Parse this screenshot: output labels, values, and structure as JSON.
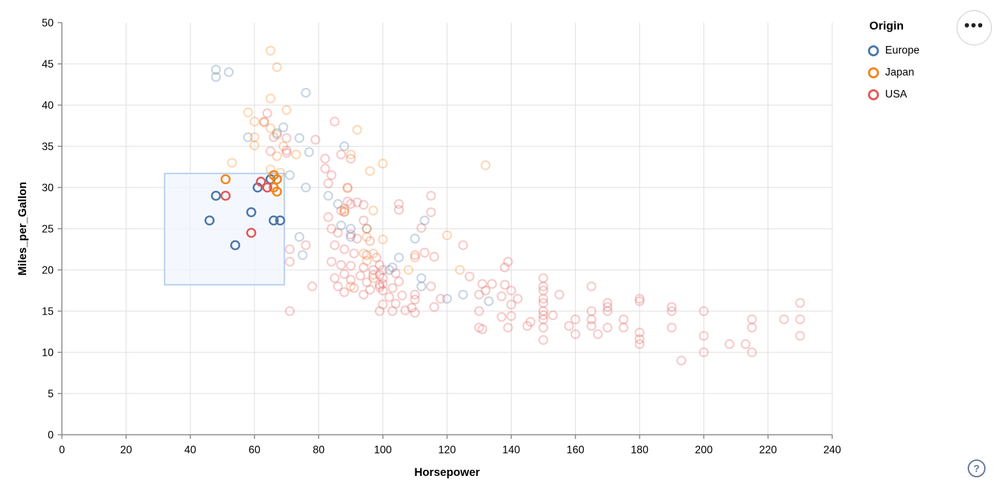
{
  "legend": {
    "title": "Origin",
    "items": [
      {
        "label": "Europe",
        "color": "#4c78a8"
      },
      {
        "label": "Japan",
        "color": "#f58518"
      },
      {
        "label": "USA",
        "color": "#e45756"
      }
    ]
  },
  "menu_button": {
    "glyph": "•••"
  },
  "help_button": {
    "glyph": "?"
  },
  "chart_data": {
    "type": "scatter",
    "title": "",
    "xlabel": "Horsepower",
    "ylabel": "Miles_per_Gallon",
    "xlim": [
      0,
      240
    ],
    "ylim": [
      0,
      50
    ],
    "x_ticks": [
      0,
      20,
      40,
      60,
      80,
      100,
      120,
      140,
      160,
      180,
      200,
      220,
      240
    ],
    "y_ticks": [
      0,
      5,
      10,
      15,
      20,
      25,
      30,
      35,
      40,
      45,
      50
    ],
    "grid": true,
    "legend_position": "top-right",
    "colors": {
      "grid": "#dddddd",
      "axis": "#888888",
      "label": "#000000",
      "brush_fill": "#f0f5fd",
      "brush_stroke": "#b5cdf2"
    },
    "brush": {
      "x": [
        32.0,
        69.3
      ],
      "y": [
        18.2,
        31.7
      ]
    },
    "series": [
      {
        "name": "Europe",
        "color": "#4c78a8",
        "selected": [
          [
            48,
            29
          ],
          [
            46,
            26
          ],
          [
            54,
            23
          ],
          [
            59,
            27
          ],
          [
            61,
            30
          ],
          [
            65,
            31
          ],
          [
            66,
            26
          ],
          [
            68,
            26
          ]
        ],
        "points": [
          [
            48,
            44.3
          ],
          [
            48,
            43.4
          ],
          [
            52,
            44
          ],
          [
            76,
            41.5
          ],
          [
            69,
            37.3
          ],
          [
            67,
            36.6
          ],
          [
            58,
            36.1
          ],
          [
            74,
            36
          ],
          [
            88,
            35
          ],
          [
            77,
            34.3
          ],
          [
            71,
            31.5
          ],
          [
            76,
            30
          ],
          [
            83,
            29
          ],
          [
            86,
            28
          ],
          [
            113,
            26
          ],
          [
            95,
            25
          ],
          [
            90,
            25
          ],
          [
            87,
            25.4
          ],
          [
            90,
            24
          ],
          [
            74,
            24
          ],
          [
            110,
            23.8
          ],
          [
            75,
            21.8
          ],
          [
            105,
            21.5
          ],
          [
            103,
            20.3
          ],
          [
            102,
            20
          ],
          [
            112,
            19
          ],
          [
            112,
            18
          ],
          [
            125,
            17
          ],
          [
            120,
            16.5
          ],
          [
            133,
            16.2
          ]
        ]
      },
      {
        "name": "Japan",
        "color": "#f58518",
        "selected": [
          [
            51,
            31
          ],
          [
            66,
            31.5
          ],
          [
            67,
            31
          ],
          [
            66,
            30
          ],
          [
            67,
            29.5
          ]
        ],
        "points": [
          [
            65,
            46.6
          ],
          [
            67,
            44.6
          ],
          [
            65,
            40.8
          ],
          [
            70,
            39.4
          ],
          [
            58,
            39.1
          ],
          [
            60,
            38
          ],
          [
            63,
            37.9
          ],
          [
            92,
            37
          ],
          [
            65,
            37.2
          ],
          [
            67,
            36.4
          ],
          [
            60,
            36.1
          ],
          [
            60,
            35.1
          ],
          [
            69,
            35
          ],
          [
            67,
            33.8
          ],
          [
            53,
            33
          ],
          [
            65,
            32.2
          ],
          [
            68,
            31.8
          ],
          [
            96,
            32
          ],
          [
            100,
            32.9
          ],
          [
            132,
            32.7
          ],
          [
            73,
            34
          ],
          [
            90,
            34
          ],
          [
            89,
            29.9
          ],
          [
            88,
            27
          ],
          [
            88,
            27.4
          ],
          [
            97,
            27.2
          ],
          [
            95,
            25
          ],
          [
            95,
            24
          ],
          [
            94,
            22
          ],
          [
            97,
            22
          ],
          [
            110,
            21.5
          ],
          [
            100,
            23.7
          ],
          [
            120,
            24.2
          ],
          [
            124,
            20
          ],
          [
            108,
            20
          ],
          [
            97,
            19
          ],
          [
            90,
            18
          ],
          [
            95,
            21.1
          ]
        ]
      },
      {
        "name": "USA",
        "color": "#e45756",
        "selected": [
          [
            51,
            29
          ],
          [
            62,
            30.7
          ],
          [
            64,
            30
          ],
          [
            59,
            24.5
          ]
        ],
        "points": [
          [
            64,
            39
          ],
          [
            63,
            38
          ],
          [
            66,
            36.1
          ],
          [
            70,
            36
          ],
          [
            65,
            34.4
          ],
          [
            70,
            34.5
          ],
          [
            70,
            34.2
          ],
          [
            85,
            38
          ],
          [
            79,
            35.8
          ],
          [
            71,
            15
          ],
          [
            76,
            23
          ],
          [
            71,
            22.5
          ],
          [
            71,
            21
          ],
          [
            78,
            18
          ],
          [
            82,
            32.3
          ],
          [
            84,
            31.5
          ],
          [
            83,
            30.5
          ],
          [
            89,
            30
          ],
          [
            89,
            28.3
          ],
          [
            90,
            28
          ],
          [
            92,
            28.2
          ],
          [
            94,
            27.9
          ],
          [
            87,
            27.2
          ],
          [
            88,
            27.1
          ],
          [
            83,
            26.4
          ],
          [
            94,
            26
          ],
          [
            82,
            33.5
          ],
          [
            87,
            34
          ],
          [
            90,
            33.5
          ],
          [
            84,
            25
          ],
          [
            86,
            24.5
          ],
          [
            90,
            24.3
          ],
          [
            92,
            23.8
          ],
          [
            96,
            23.5
          ],
          [
            85,
            23
          ],
          [
            88,
            22.5
          ],
          [
            91,
            22
          ],
          [
            95,
            21.8
          ],
          [
            98,
            21.5
          ],
          [
            84,
            21
          ],
          [
            87,
            20.6
          ],
          [
            90,
            20.5
          ],
          [
            94,
            20.3
          ],
          [
            97,
            20
          ],
          [
            99,
            20.6
          ],
          [
            88,
            19.5
          ],
          [
            93,
            19.3
          ],
          [
            97,
            19.4
          ],
          [
            99,
            19.4
          ],
          [
            85,
            19
          ],
          [
            90,
            18.8
          ],
          [
            95,
            18.5
          ],
          [
            99,
            18.2
          ],
          [
            86,
            18
          ],
          [
            91,
            17.8
          ],
          [
            96,
            17.6
          ],
          [
            99,
            17.9
          ],
          [
            88,
            17.3
          ],
          [
            94,
            17
          ],
          [
            99,
            15
          ],
          [
            105,
            28
          ],
          [
            105,
            27.3
          ],
          [
            112,
            25.1
          ],
          [
            110,
            21.8
          ],
          [
            113,
            22.1
          ],
          [
            116,
            21.6
          ],
          [
            115,
            29
          ],
          [
            115,
            27
          ],
          [
            100,
            20
          ],
          [
            100,
            19
          ],
          [
            100,
            18.3
          ],
          [
            100,
            17.5
          ],
          [
            102,
            16.7
          ],
          [
            100,
            15.8
          ],
          [
            103,
            15
          ],
          [
            104,
            19.6
          ],
          [
            105,
            18.6
          ],
          [
            103,
            17.8
          ],
          [
            106,
            16.9
          ],
          [
            104,
            15.9
          ],
          [
            107,
            15.1
          ],
          [
            110,
            17
          ],
          [
            110,
            16.4
          ],
          [
            109,
            15.4
          ],
          [
            110,
            14.8
          ],
          [
            115,
            18
          ],
          [
            118,
            16.5
          ],
          [
            116,
            15.5
          ],
          [
            125,
            23
          ],
          [
            127,
            19.2
          ],
          [
            131,
            18.3
          ],
          [
            132,
            17.5
          ],
          [
            130,
            17
          ],
          [
            130,
            15
          ],
          [
            130,
            13
          ],
          [
            131,
            12.8
          ],
          [
            134,
            18.3
          ],
          [
            138,
            20.3
          ],
          [
            139,
            21
          ],
          [
            137,
            16.8
          ],
          [
            138,
            18.2
          ],
          [
            140,
            17.5
          ],
          [
            140,
            15.8
          ],
          [
            137,
            14.3
          ],
          [
            140,
            14.4
          ],
          [
            139,
            13
          ],
          [
            145,
            13.2
          ],
          [
            146,
            13.7
          ],
          [
            142,
            16.5
          ],
          [
            150,
            19
          ],
          [
            150,
            18
          ],
          [
            150,
            17.5
          ],
          [
            150,
            16.5
          ],
          [
            150,
            16
          ],
          [
            150,
            15
          ],
          [
            150,
            14.5
          ],
          [
            150,
            14
          ],
          [
            150,
            13
          ],
          [
            150,
            11.5
          ],
          [
            153,
            14.5
          ],
          [
            155,
            17
          ],
          [
            158,
            13.2
          ],
          [
            160,
            14
          ],
          [
            160,
            12.2
          ],
          [
            165,
            18
          ],
          [
            165,
            15
          ],
          [
            165,
            14
          ],
          [
            165,
            13.2
          ],
          [
            167,
            12.2
          ],
          [
            170,
            16
          ],
          [
            170,
            15.5
          ],
          [
            170,
            15
          ],
          [
            170,
            13
          ],
          [
            175,
            14
          ],
          [
            175,
            13
          ],
          [
            180,
            16.5
          ],
          [
            180,
            16.2
          ],
          [
            180,
            12.4
          ],
          [
            180,
            11.6
          ],
          [
            180,
            11
          ],
          [
            190,
            15.5
          ],
          [
            190,
            15
          ],
          [
            190,
            13
          ],
          [
            193,
            9
          ],
          [
            200,
            15
          ],
          [
            200,
            12
          ],
          [
            200,
            10
          ],
          [
            208,
            11
          ],
          [
            213,
            11
          ],
          [
            215,
            14
          ],
          [
            215,
            13
          ],
          [
            215,
            10
          ],
          [
            225,
            14
          ],
          [
            230,
            14
          ],
          [
            230,
            12
          ],
          [
            230,
            16
          ]
        ]
      }
    ]
  }
}
